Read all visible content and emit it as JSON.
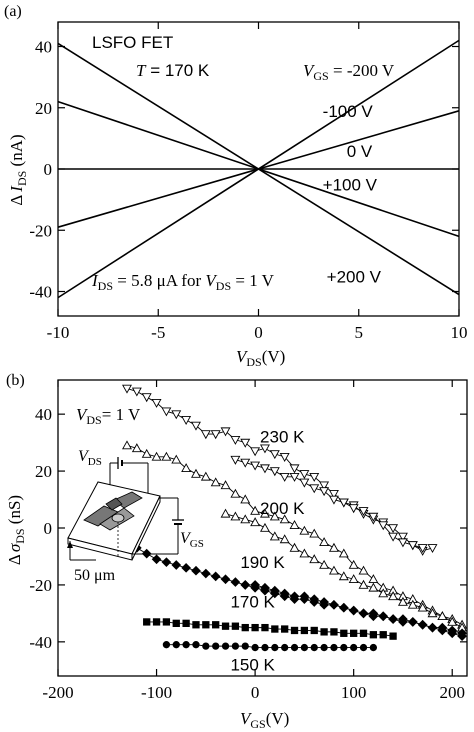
{
  "chart_data": [
    {
      "panel_label": "(a)",
      "type": "line",
      "xlabel_var": "V",
      "xlabel_sub": "DS",
      "xlabel_unit": "(V)",
      "ylabel_prefix": "Δ",
      "ylabel_var": "I",
      "ylabel_sub": "DS",
      "ylabel_unit": " (nA)",
      "xlim": [
        -10,
        10
      ],
      "ylim": [
        -48,
        48
      ],
      "xticks": [
        -10,
        -5,
        0,
        5,
        10
      ],
      "yticks": [
        -40,
        -20,
        0,
        20,
        40
      ],
      "grid": false,
      "annotations": {
        "device": "LSFO FET",
        "temp_var": "T",
        "temp_value": " = 170 K",
        "vgs_var": "V",
        "vgs_sub": "GS",
        "vgs_value": " = -200 V",
        "current_var": "I",
        "current_sub": "DS",
        "current_mid": " = 5.8 μA for ",
        "current_var2": "V",
        "current_sub2": "DS",
        "current_end": " = 1 V"
      },
      "series": [
        {
          "name": "-200 V",
          "x": [
            -10,
            10
          ],
          "y": [
            41,
            -41
          ],
          "label_pos": null
        },
        {
          "name": "-100 V",
          "x": [
            -10,
            10
          ],
          "y": [
            22,
            -22
          ],
          "label_pos": [
            3.2,
            17
          ]
        },
        {
          "name": "0 V",
          "x": [
            -10,
            10
          ],
          "y": [
            0,
            0
          ],
          "label_pos": [
            4.4,
            4
          ]
        },
        {
          "name": "+100 V",
          "x": [
            -10,
            10
          ],
          "y": [
            -19,
            19
          ],
          "label_pos": [
            3.2,
            -7
          ]
        },
        {
          "name": "+200 V",
          "x": [
            -10,
            10
          ],
          "y": [
            -42,
            42
          ],
          "label_pos": [
            3.4,
            -37
          ]
        }
      ]
    },
    {
      "panel_label": "(b)",
      "type": "scatter",
      "xlabel_var": "V",
      "xlabel_sub": "GS",
      "xlabel_unit": "(V)",
      "ylabel_prefix": "Δ",
      "ylabel_var": "σ",
      "ylabel_sub": "DS",
      "ylabel_unit": " (nS)",
      "xlim": [
        -200,
        215
      ],
      "ylim": [
        -52,
        52
      ],
      "xticks": [
        -200,
        -100,
        0,
        100,
        200
      ],
      "yticks": [
        -40,
        -20,
        0,
        20,
        40
      ],
      "grid": false,
      "annotations": {
        "vds_var": "V",
        "vds_sub": "DS",
        "vds_value": "= 1 V",
        "inset_vds_var": "V",
        "inset_vds_sub": "DS",
        "inset_vgs_var": "V",
        "inset_vgs_sub": "GS",
        "scale_bar": "50 μm"
      },
      "series": [
        {
          "name": "230 K",
          "marker": "triangle-down",
          "filled": false,
          "label_pos": [
            5,
            30
          ],
          "x": [
            -130,
            -120,
            -110,
            -100,
            -90,
            -80,
            -70,
            -60,
            -50,
            -40,
            -30,
            -20,
            -10,
            0,
            10,
            20,
            30,
            40,
            50,
            60,
            70,
            80,
            90,
            100,
            110,
            120,
            130,
            140,
            150,
            160,
            170,
            180
          ],
          "y": [
            49,
            48,
            46,
            44,
            41,
            40,
            38,
            36,
            33,
            33,
            34,
            31,
            30,
            27,
            28,
            26,
            25,
            21,
            19,
            18,
            15,
            12,
            9,
            8,
            5,
            3,
            2,
            0,
            -3,
            -6,
            -8,
            -7
          ]
        },
        {
          "name": "",
          "marker": "triangle-down",
          "filled": false,
          "label_pos": null,
          "x": [
            -20,
            -10,
            0,
            10,
            20,
            30,
            40,
            50,
            60,
            70,
            80,
            90,
            100,
            110,
            120,
            130,
            140,
            150,
            160,
            170
          ],
          "y": [
            24,
            23,
            22,
            21,
            20,
            18,
            18,
            16,
            14,
            13,
            10,
            9,
            7,
            6,
            4,
            1,
            -3,
            -5,
            -6,
            -7
          ]
        },
        {
          "name": "200 K",
          "marker": "triangle-up",
          "filled": false,
          "label_pos": [
            5,
            5
          ],
          "x": [
            -130,
            -120,
            -110,
            -100,
            -90,
            -80,
            -70,
            -60,
            -50,
            -40,
            -30,
            -20,
            -10,
            0,
            10,
            20,
            30,
            40,
            50,
            60,
            70,
            80,
            90,
            100,
            110,
            120,
            130,
            140,
            150,
            160,
            170,
            180,
            190,
            200,
            210
          ],
          "y": [
            29,
            28,
            26,
            25,
            25,
            24,
            21,
            19,
            18,
            16,
            15,
            12,
            10,
            6,
            5,
            4,
            3,
            1,
            -1,
            -2,
            -5,
            -7,
            -9,
            -13,
            -15,
            -18,
            -21,
            -22,
            -24,
            -25,
            -27,
            -29,
            -31,
            -32,
            -34
          ]
        },
        {
          "name": "",
          "marker": "triangle-up",
          "filled": false,
          "label_pos": null,
          "x": [
            -30,
            -20,
            -10,
            0,
            10,
            20,
            30,
            40,
            50,
            60,
            70,
            80,
            90,
            100,
            110,
            120,
            130,
            140,
            150,
            160,
            170,
            180,
            190,
            200,
            210
          ],
          "y": [
            5,
            4,
            3,
            2,
            0,
            -3,
            -4,
            -7,
            -9,
            -11,
            -13,
            -15,
            -17,
            -18,
            -20,
            -21,
            -23,
            -24,
            -26,
            -27,
            -28,
            -30,
            -31,
            -33,
            -35
          ]
        },
        {
          "name": "190 K",
          "marker": "diamond",
          "filled": true,
          "label_pos": [
            -15,
            -14
          ],
          "x": [
            -120,
            -110,
            -100,
            -90,
            -80,
            -70,
            -60,
            -50,
            -40,
            -30,
            -20,
            -10,
            0,
            10,
            20,
            30,
            40,
            50,
            60,
            70,
            80,
            90,
            100,
            110,
            120,
            130,
            140,
            150,
            160,
            170,
            180,
            190,
            200,
            210
          ],
          "y": [
            -7,
            -9,
            -11,
            -12,
            -13,
            -14,
            -15,
            -16,
            -17,
            -18,
            -19,
            -20,
            -20,
            -21,
            -22,
            -23,
            -24,
            -24,
            -25,
            -26,
            -27,
            -28,
            -29,
            -30,
            -30,
            -31,
            -32,
            -32,
            -33,
            -34,
            -35,
            -36,
            -37,
            -38
          ]
        },
        {
          "name": "",
          "marker": "diamond",
          "filled": true,
          "label_pos": null,
          "x": [
            -10,
            0,
            10,
            20,
            30,
            40,
            50,
            60,
            70,
            80,
            90,
            100,
            110,
            120,
            130,
            140,
            150,
            160,
            170,
            180,
            190,
            200,
            210
          ],
          "y": [
            -20,
            -21,
            -22,
            -23,
            -24,
            -25,
            -25,
            -26,
            -27,
            -27,
            -28,
            -29,
            -30,
            -31,
            -31,
            -32,
            -33,
            -33,
            -34,
            -35,
            -35,
            -36,
            -37
          ]
        },
        {
          "name": "170 K",
          "marker": "square",
          "filled": true,
          "label_pos": [
            -25,
            -28
          ],
          "x": [
            -110,
            -100,
            -90,
            -80,
            -70,
            -60,
            -50,
            -40,
            -30,
            -20,
            -10,
            0,
            10,
            20,
            30,
            40,
            50,
            60,
            70,
            80,
            90,
            100,
            110,
            120,
            130,
            140
          ],
          "y": [
            -33,
            -33,
            -33,
            -33.5,
            -33.5,
            -34,
            -34,
            -34,
            -34.5,
            -34.5,
            -35,
            -35,
            -35,
            -35.5,
            -35.5,
            -36,
            -36,
            -36,
            -36.5,
            -36.5,
            -37,
            -37,
            -37,
            -37.5,
            -37.5,
            -38
          ]
        },
        {
          "name": "150 K",
          "marker": "circle",
          "filled": true,
          "label_pos": [
            -25,
            -50
          ],
          "x": [
            -90,
            -80,
            -70,
            -60,
            -50,
            -40,
            -30,
            -20,
            -10,
            0,
            10,
            20,
            30,
            40,
            50,
            60,
            70,
            80,
            90,
            100,
            110,
            120
          ],
          "y": [
            -41,
            -41,
            -41,
            -41,
            -41.5,
            -41.5,
            -41.5,
            -41.5,
            -41.5,
            -42,
            -42,
            -42,
            -42,
            -42,
            -42,
            -42,
            -42,
            -42,
            -42,
            -42,
            -42,
            -42
          ]
        }
      ]
    }
  ]
}
